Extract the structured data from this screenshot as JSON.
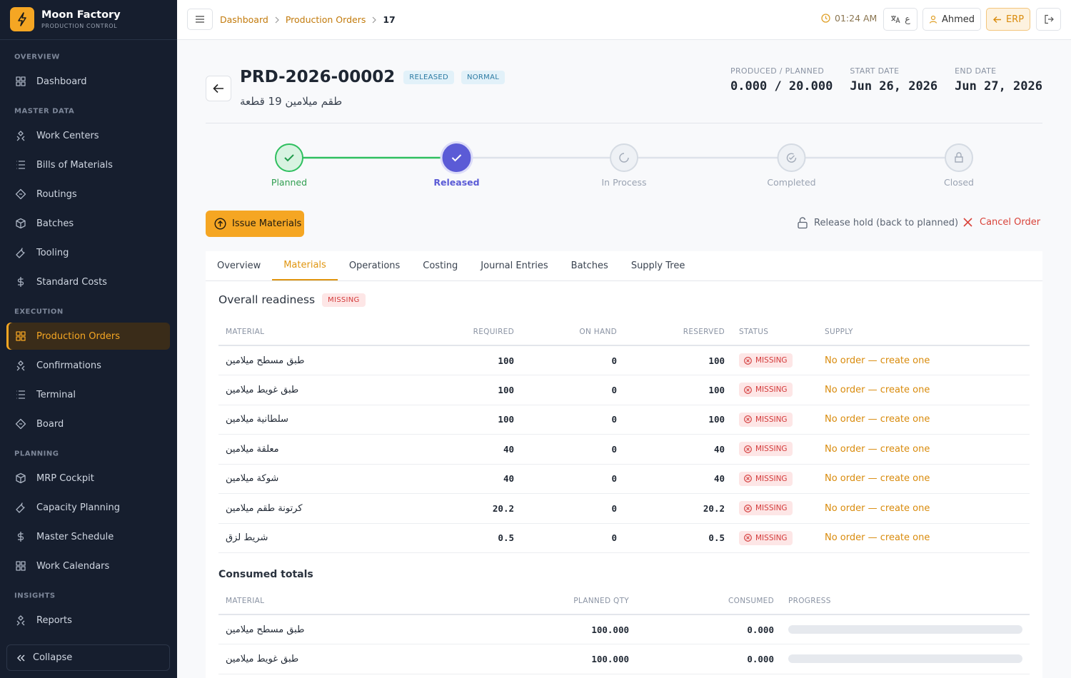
{
  "sidebar": {
    "brand": "Moon Factory",
    "subtitle": "PRODUCTION CONTROL",
    "sections": [
      {
        "title": "OVERVIEW",
        "items": [
          "Dashboard"
        ]
      },
      {
        "title": "MASTER DATA",
        "items": [
          "Work Centers",
          "Bills of Materials",
          "Routings",
          "Batches",
          "Tooling",
          "Standard Costs"
        ]
      },
      {
        "title": "EXECUTION",
        "items": [
          "Production Orders",
          "Confirmations",
          "Terminal",
          "Board"
        ]
      },
      {
        "title": "PLANNING",
        "items": [
          "MRP Cockpit",
          "Capacity Planning",
          "Master Schedule",
          "Work Calendars"
        ]
      },
      {
        "title": "INSIGHTS",
        "items": [
          "Reports"
        ]
      }
    ],
    "collapse": "Collapse"
  },
  "topbar": {
    "breadcrumbs": [
      "Dashboard",
      "Production Orders",
      "17"
    ],
    "time": "01:24 AM",
    "language": "ع",
    "user": "Ahmed",
    "erp": "ERP"
  },
  "header": {
    "order": "PRD-2026-00002",
    "badges": [
      "RELEASED",
      "NORMAL"
    ],
    "product": "طقم ميلامين 19 قطعة",
    "stats": [
      {
        "label": "PRODUCED / PLANNED",
        "value": "0.000 / 20.000"
      },
      {
        "label": "START DATE",
        "value": "Jun 26, 2026"
      },
      {
        "label": "END DATE",
        "value": "Jun 27, 2026"
      }
    ]
  },
  "steps": [
    "Planned",
    "Released",
    "In Process",
    "Completed",
    "Closed"
  ],
  "actions": {
    "issue": "Issue Materials",
    "release": "Release hold (back to planned)",
    "cancel": "Cancel Order"
  },
  "tabs": [
    "Overview",
    "Materials",
    "Operations",
    "Costing",
    "Journal Entries",
    "Batches",
    "Supply Tree"
  ],
  "readiness": {
    "title": "Overall readiness",
    "badge": "MISSING"
  },
  "materials": {
    "columns": [
      "MATERIAL",
      "REQUIRED",
      "ON HAND",
      "RESERVED",
      "STATUS",
      "SUPPLY"
    ],
    "rows": [
      [
        "طبق مسطح ميلامين",
        "100",
        "0",
        "100",
        "MISSING",
        "No order — create one"
      ],
      [
        "طبق غويط ميلامين",
        "100",
        "0",
        "100",
        "MISSING",
        "No order — create one"
      ],
      [
        "سلطانية ميلامين",
        "100",
        "0",
        "100",
        "MISSING",
        "No order — create one"
      ],
      [
        "معلقة ميلامين",
        "40",
        "0",
        "40",
        "MISSING",
        "No order — create one"
      ],
      [
        "شوكة ميلامين",
        "40",
        "0",
        "40",
        "MISSING",
        "No order — create one"
      ],
      [
        "كرتونة طقم ميلامين",
        "20.2",
        "0",
        "20.2",
        "MISSING",
        "No order — create one"
      ],
      [
        "شريط لزق",
        "0.5",
        "0",
        "0.5",
        "MISSING",
        "No order — create one"
      ]
    ]
  },
  "consumed": {
    "title": "Consumed totals",
    "columns": [
      "MATERIAL",
      "PLANNED QTY",
      "CONSUMED",
      "PROGRESS"
    ],
    "rows": [
      [
        "طبق مسطح ميلامين",
        "100.000",
        "0.000"
      ],
      [
        "طبق غويط ميلامين",
        "100.000",
        "0.000"
      ]
    ]
  }
}
